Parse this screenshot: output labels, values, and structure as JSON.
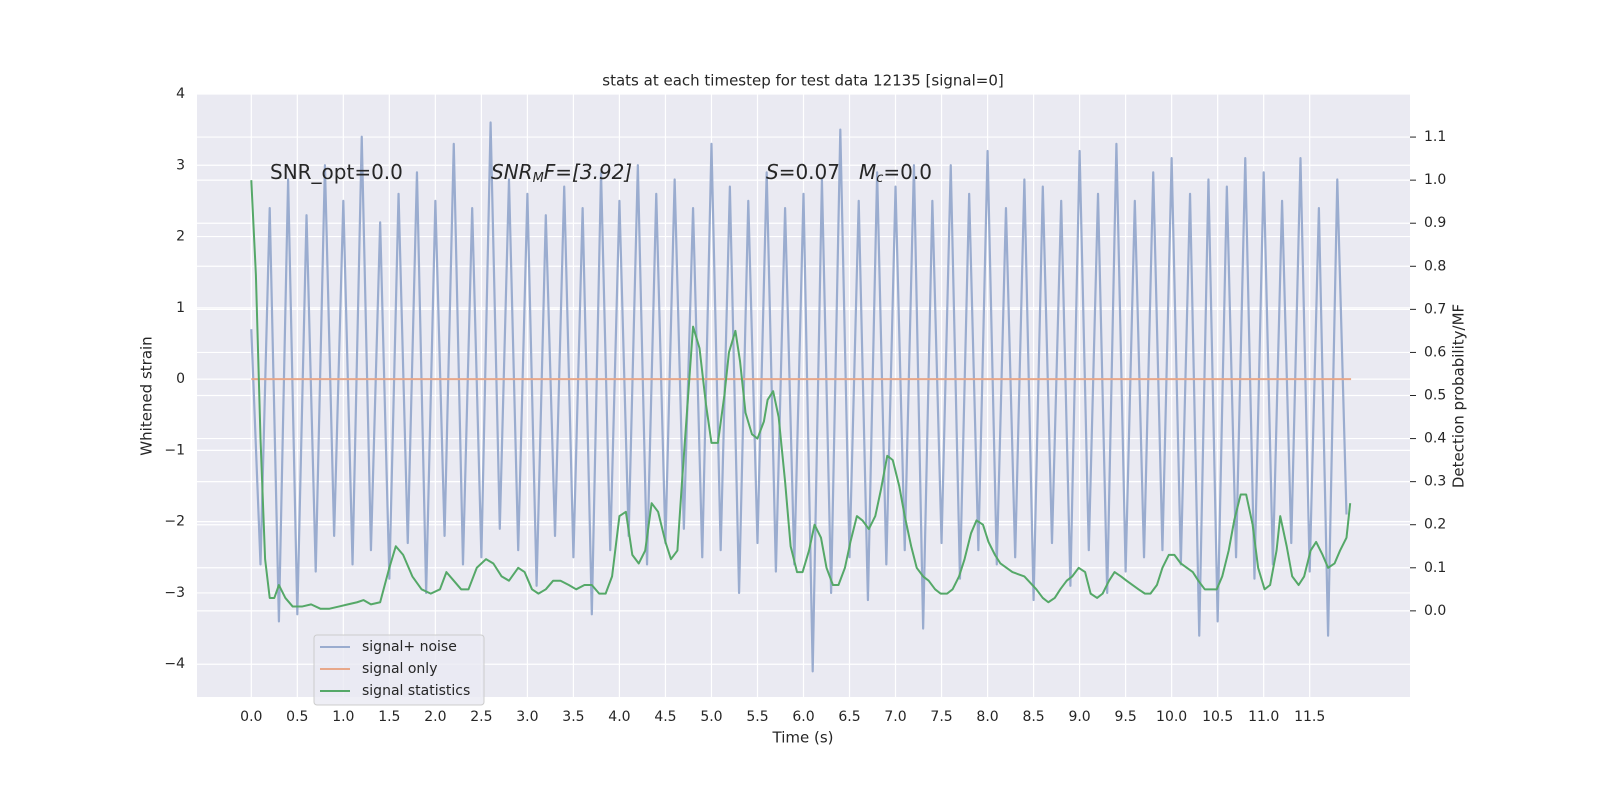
{
  "chart_data": {
    "type": "line",
    "title": "stats at each timestep for test data 12135 [signal=0]",
    "x_label": "Time (s)",
    "y_label": "Whitened strain",
    "y2_label": "Detection probability/MF",
    "xlim": [
      -0.59,
      12.59
    ],
    "ylim": [
      -4.46,
      4.0
    ],
    "y2lim": [
      -0.2,
      1.2
    ],
    "xticks": [
      {
        "value": 0,
        "label": "0.0"
      },
      0.5,
      {
        "value": 1,
        "label": "1.0"
      },
      1.5,
      {
        "value": 2,
        "label": "2.0"
      },
      2.5,
      {
        "value": 3,
        "label": "3.0"
      },
      3.5,
      {
        "value": 4,
        "label": "4.0"
      },
      4.5,
      {
        "value": 5,
        "label": "5.0"
      },
      5.5,
      {
        "value": 6,
        "label": "6.0"
      },
      6.5,
      {
        "value": 7,
        "label": "7.0"
      },
      7.5,
      {
        "value": 8,
        "label": "8.0"
      },
      8.5,
      {
        "value": 9,
        "label": "9.0"
      },
      9.5,
      {
        "value": 10,
        "label": "10.0"
      },
      10.5,
      {
        "value": 11,
        "label": "11.0"
      },
      11.5
    ],
    "yticks": [
      {
        "value": -4,
        "label": "−4"
      },
      {
        "value": -3,
        "label": "−3"
      },
      {
        "value": -2,
        "label": "−2"
      },
      {
        "value": -1,
        "label": "−1"
      },
      0,
      1,
      2,
      3,
      4
    ],
    "y2ticks": [
      {
        "value": 0,
        "label": "0.0"
      },
      0.1,
      0.2,
      0.3,
      0.4,
      0.5,
      0.6,
      0.7,
      0.8,
      0.9,
      {
        "value": 1,
        "label": "1.0"
      },
      1.1
    ],
    "grid": true,
    "legend": "lower left",
    "annotations": [
      {
        "text": "SNR_opt=0.0"
      },
      {
        "text": "SNR",
        "sub": "M",
        "suffix": "F=[3.92]"
      },
      {
        "text": "S",
        "suffix": "=0.07"
      },
      {
        "text": "M",
        "sub": "c",
        "suffix": "=0.0"
      }
    ],
    "series": [
      {
        "name": "signal+ noise",
        "color": "#9aaccf",
        "x": [
          0,
          0.1,
          0.2,
          0.3,
          0.4,
          0.5,
          0.6,
          0.7,
          0.8,
          0.9,
          1,
          1.1,
          1.2,
          1.3,
          1.4,
          1.5,
          1.6,
          1.7,
          1.8,
          1.9,
          2,
          2.1,
          2.2,
          2.3,
          2.4,
          2.5,
          2.6,
          2.7,
          2.8,
          2.9,
          3,
          3.1,
          3.2,
          3.3,
          3.4,
          3.5,
          3.6,
          3.7,
          3.8,
          3.9,
          4,
          4.1,
          4.2,
          4.3,
          4.4,
          4.5,
          4.6,
          4.7,
          4.8,
          4.9,
          5,
          5.1,
          5.2,
          5.3,
          5.4,
          5.5,
          5.6,
          5.7,
          5.8,
          5.9,
          6,
          6.1,
          6.2,
          6.3,
          6.4,
          6.5,
          6.6,
          6.7,
          6.8,
          6.9,
          7,
          7.1,
          7.2,
          7.3,
          7.4,
          7.5,
          7.6,
          7.7,
          7.8,
          7.9,
          8,
          8.1,
          8.2,
          8.3,
          8.4,
          8.5,
          8.6,
          8.7,
          8.8,
          8.9,
          9,
          9.1,
          9.2,
          9.3,
          9.4,
          9.5,
          9.6,
          9.7,
          9.8,
          9.9,
          10,
          10.1,
          10.2,
          10.3,
          10.4,
          10.5,
          10.6,
          10.7,
          10.8,
          10.9,
          11,
          11.1,
          11.2,
          11.3,
          11.4,
          11.5,
          11.6,
          11.7,
          11.8,
          11.9
        ],
        "values": [
          0.7,
          -2.6,
          2.4,
          -3.4,
          2.8,
          -3.3,
          2.3,
          -2.7,
          3.0,
          -2.2,
          2.5,
          -2.6,
          3.4,
          -2.4,
          2.2,
          -2.8,
          2.6,
          -2.3,
          2.9,
          -3.0,
          2.5,
          -2.2,
          3.3,
          -2.6,
          2.4,
          -2.5,
          3.6,
          -2.1,
          2.8,
          -2.4,
          2.6,
          -2.9,
          2.3,
          -2.2,
          2.7,
          -2.5,
          2.4,
          -3.3,
          2.9,
          -2.4,
          2.5,
          -2.2,
          3.0,
          -2.6,
          2.6,
          -2.3,
          2.8,
          -2.1,
          2.4,
          -2.5,
          3.3,
          -2.4,
          2.7,
          -3.0,
          2.5,
          -2.3,
          2.9,
          -2.7,
          2.4,
          -2.6,
          2.6,
          -4.1,
          2.8,
          -3.0,
          3.5,
          -2.5,
          2.5,
          -3.1,
          2.9,
          -2.6,
          2.7,
          -2.4,
          3.0,
          -3.5,
          2.5,
          -2.3,
          3.0,
          -2.8,
          2.6,
          -2.4,
          3.2,
          -2.6,
          2.4,
          -2.5,
          2.8,
          -3.1,
          2.7,
          -2.3,
          2.5,
          -2.9,
          3.2,
          -2.4,
          2.6,
          -3.0,
          3.3,
          -2.7,
          2.5,
          -2.5,
          2.9,
          -2.4,
          3.1,
          -2.6,
          2.6,
          -3.6,
          2.8,
          -3.4,
          2.7,
          -2.5,
          3.1,
          -2.8,
          2.9,
          -2.6,
          2.5,
          -2.3,
          3.1,
          -2.7,
          2.4,
          -3.6,
          2.8,
          -1.9
        ]
      },
      {
        "name": "signal only",
        "color": "#e8a88a",
        "x": [
          0,
          11.95
        ],
        "values": [
          0,
          0
        ]
      },
      {
        "name": "signal statistics",
        "color": "#55a868",
        "axis": "y2",
        "x": [
          0,
          0.05,
          0.1,
          0.15,
          0.2,
          0.25,
          0.3,
          0.37,
          0.45,
          0.55,
          0.65,
          0.75,
          0.85,
          0.95,
          1.05,
          1.15,
          1.22,
          1.3,
          1.4,
          1.5,
          1.57,
          1.65,
          1.75,
          1.85,
          1.95,
          2.05,
          2.12,
          2.2,
          2.28,
          2.36,
          2.45,
          2.55,
          2.63,
          2.72,
          2.8,
          2.9,
          2.97,
          3.05,
          3.12,
          3.2,
          3.28,
          3.36,
          3.45,
          3.53,
          3.62,
          3.7,
          3.78,
          3.85,
          3.92,
          4.0,
          4.07,
          4.14,
          4.21,
          4.28,
          4.35,
          4.42,
          4.5,
          4.56,
          4.63,
          4.68,
          4.8,
          4.87,
          4.94,
          5.0,
          5.07,
          5.14,
          5.19,
          5.26,
          5.31,
          5.37,
          5.44,
          5.5,
          5.57,
          5.61,
          5.67,
          5.73,
          5.8,
          5.86,
          5.93,
          5.99,
          6.06,
          6.12,
          6.19,
          6.25,
          6.32,
          6.38,
          6.45,
          6.51,
          6.58,
          6.64,
          6.71,
          6.78,
          6.84,
          6.91,
          6.97,
          7.04,
          7.1,
          7.17,
          7.23,
          7.3,
          7.36,
          7.43,
          7.49,
          7.56,
          7.62,
          7.69,
          7.75,
          7.82,
          7.88,
          7.95,
          8.01,
          8.08,
          8.14,
          8.27,
          8.4,
          8.53,
          8.6,
          8.66,
          8.73,
          8.79,
          8.86,
          8.92,
          8.99,
          9.06,
          9.12,
          9.19,
          9.25,
          9.32,
          9.38,
          9.45,
          9.51,
          9.64,
          9.71,
          9.77,
          9.84,
          9.9,
          9.97,
          10.03,
          10.1,
          10.23,
          10.29,
          10.36,
          10.42,
          10.49,
          10.55,
          10.62,
          10.68,
          10.75,
          10.81,
          10.88,
          10.94,
          11.01,
          11.07,
          11.14,
          11.18,
          11.25,
          11.31,
          11.38,
          11.44,
          11.51,
          11.57,
          11.64,
          11.7,
          11.77,
          11.83,
          11.9,
          11.94
        ],
        "values": [
          1.0,
          0.78,
          0.4,
          0.12,
          0.03,
          0.03,
          0.06,
          0.03,
          0.01,
          0.01,
          0.015,
          0.005,
          0.005,
          0.01,
          0.015,
          0.02,
          0.025,
          0.015,
          0.02,
          0.1,
          0.15,
          0.13,
          0.08,
          0.05,
          0.04,
          0.05,
          0.09,
          0.07,
          0.05,
          0.05,
          0.1,
          0.12,
          0.11,
          0.08,
          0.07,
          0.1,
          0.09,
          0.05,
          0.04,
          0.05,
          0.07,
          0.07,
          0.06,
          0.05,
          0.06,
          0.06,
          0.04,
          0.04,
          0.08,
          0.22,
          0.23,
          0.13,
          0.11,
          0.14,
          0.25,
          0.23,
          0.16,
          0.12,
          0.14,
          0.3,
          0.66,
          0.61,
          0.48,
          0.39,
          0.39,
          0.5,
          0.6,
          0.65,
          0.58,
          0.46,
          0.41,
          0.4,
          0.44,
          0.49,
          0.51,
          0.45,
          0.3,
          0.15,
          0.09,
          0.09,
          0.14,
          0.2,
          0.17,
          0.1,
          0.06,
          0.06,
          0.1,
          0.16,
          0.22,
          0.21,
          0.19,
          0.22,
          0.28,
          0.36,
          0.35,
          0.29,
          0.22,
          0.15,
          0.1,
          0.08,
          0.07,
          0.05,
          0.04,
          0.04,
          0.05,
          0.08,
          0.12,
          0.18,
          0.21,
          0.2,
          0.16,
          0.13,
          0.11,
          0.09,
          0.08,
          0.05,
          0.03,
          0.02,
          0.03,
          0.05,
          0.07,
          0.08,
          0.1,
          0.09,
          0.04,
          0.03,
          0.04,
          0.07,
          0.09,
          0.08,
          0.07,
          0.05,
          0.04,
          0.04,
          0.06,
          0.1,
          0.13,
          0.13,
          0.11,
          0.09,
          0.07,
          0.05,
          0.05,
          0.05,
          0.08,
          0.14,
          0.21,
          0.27,
          0.27,
          0.2,
          0.1,
          0.05,
          0.06,
          0.14,
          0.22,
          0.15,
          0.08,
          0.06,
          0.08,
          0.14,
          0.16,
          0.13,
          0.1,
          0.11,
          0.14,
          0.17,
          0.25
        ]
      }
    ]
  }
}
